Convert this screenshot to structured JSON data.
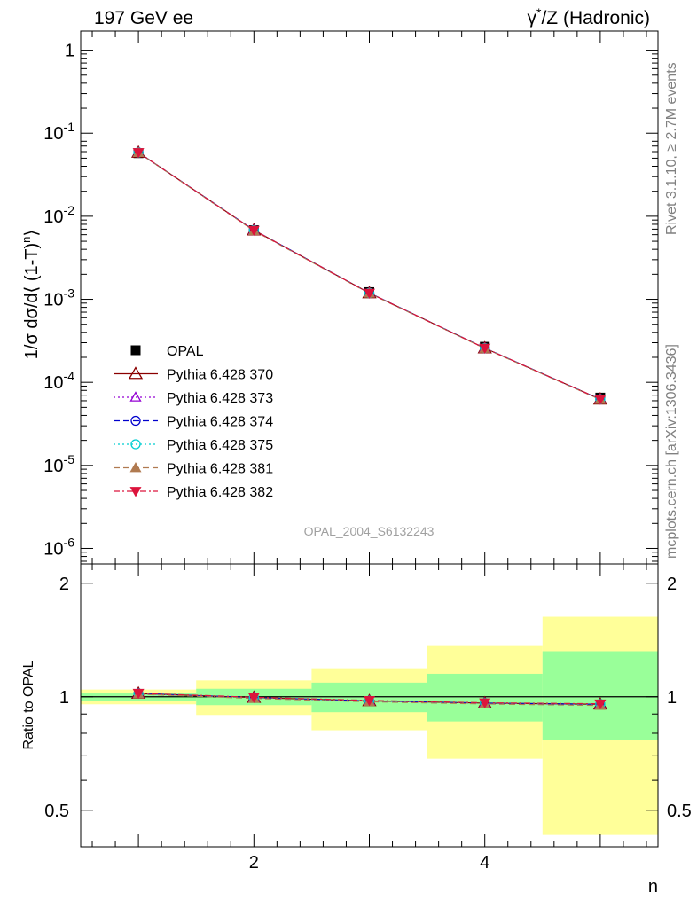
{
  "header": {
    "left_title": "197 GeV ee",
    "right_title": "γ*/Z (Hadronic)",
    "right_title_base": "γ",
    "right_title_sup": "*",
    "right_title_rest": "/Z (Hadronic)"
  },
  "side_text": {
    "rivet": "Rivet 3.1.10, ≥ 2.7M events",
    "mcplots": "mcplots.cern.ch [arXiv:1306.3436]"
  },
  "watermark": "OPAL_2004_S6132243",
  "colors": {
    "opal": "#000000",
    "s370": "#8b0000",
    "s373": "#9400d3",
    "s374": "#0000cd",
    "s375": "#00ced1",
    "s381": "#b07a50",
    "s382": "#dc143c",
    "band_green": "#99ff99",
    "band_yellow": "#ffff99"
  },
  "chart_data": {
    "type": "line",
    "x": [
      1,
      2,
      3,
      4,
      5
    ],
    "bin_edges": [
      0.5,
      1.5,
      2.5,
      3.5,
      4.5,
      5.5
    ],
    "upper": {
      "ylabel": "1/σ dσ/d⟨ (1-T)ⁿ⟩",
      "ylabel_base": "1/σ dσ/d⟨ (1-T)",
      "ylabel_sup": "n",
      "ylabel_end": "⟩",
      "yscale": "log",
      "ylim": [
        6.5e-07,
        1.7
      ],
      "ytick_labels": [
        {
          "base": "10",
          "exp": "-6"
        },
        {
          "base": "10",
          "exp": "-5"
        },
        {
          "base": "10",
          "exp": "-4"
        },
        {
          "base": "10",
          "exp": "-3"
        },
        {
          "base": "10",
          "exp": "-2"
        },
        {
          "base": "10",
          "exp": "-1"
        },
        {
          "base": "1",
          "exp": ""
        }
      ],
      "data": {
        "name": "OPAL",
        "values": [
          0.0575,
          0.0068,
          0.00122,
          0.000268,
          6.55e-05
        ]
      },
      "series": [
        {
          "name": "Pythia 6.428 370",
          "values": [
            0.0585,
            0.0068,
            0.00119,
            0.000258,
            6.25e-05
          ]
        },
        {
          "name": "Pythia 6.428 373",
          "values": [
            0.0584,
            0.0068,
            0.00119,
            0.000258,
            6.24e-05
          ]
        },
        {
          "name": "Pythia 6.428 374",
          "values": [
            0.0585,
            0.0068,
            0.00119,
            0.000258,
            6.25e-05
          ]
        },
        {
          "name": "Pythia 6.428 375",
          "values": [
            0.0585,
            0.0068,
            0.00119,
            0.000258,
            6.26e-05
          ]
        },
        {
          "name": "Pythia 6.428 381",
          "values": [
            0.0584,
            0.0067,
            0.00118,
            0.000256,
            6.2e-05
          ]
        },
        {
          "name": "Pythia 6.428 382",
          "values": [
            0.0586,
            0.0068,
            0.00119,
            0.000258,
            6.27e-05
          ]
        }
      ]
    },
    "ratio": {
      "ylabel": "Ratio to OPAL",
      "yscale": "log",
      "ylim": [
        0.4,
        2.25
      ],
      "ytick_labels": [
        "0.5",
        "1",
        "2"
      ],
      "band_inner": [
        [
          0.975,
          1.025
        ],
        [
          0.95,
          1.05
        ],
        [
          0.91,
          1.09
        ],
        [
          0.86,
          1.15
        ],
        [
          0.77,
          1.32
        ]
      ],
      "band_outer": [
        [
          0.955,
          1.045
        ],
        [
          0.895,
          1.105
        ],
        [
          0.815,
          1.19
        ],
        [
          0.685,
          1.37
        ],
        [
          0.43,
          1.63
        ]
      ],
      "series_values": [
        [
          1.02,
          0.995,
          0.975,
          0.962,
          0.955
        ],
        [
          1.018,
          0.995,
          0.974,
          0.962,
          0.953
        ],
        [
          1.02,
          0.995,
          0.975,
          0.962,
          0.955
        ],
        [
          1.02,
          0.995,
          0.976,
          0.963,
          0.956
        ],
        [
          1.016,
          0.99,
          0.97,
          0.957,
          0.948
        ],
        [
          1.022,
          0.997,
          0.978,
          0.964,
          0.958
        ]
      ]
    },
    "xlabel": "n",
    "xlim": [
      0.5,
      5.5
    ],
    "xtick_labels": [
      "2",
      "4"
    ],
    "legend_position": "lower-left"
  }
}
